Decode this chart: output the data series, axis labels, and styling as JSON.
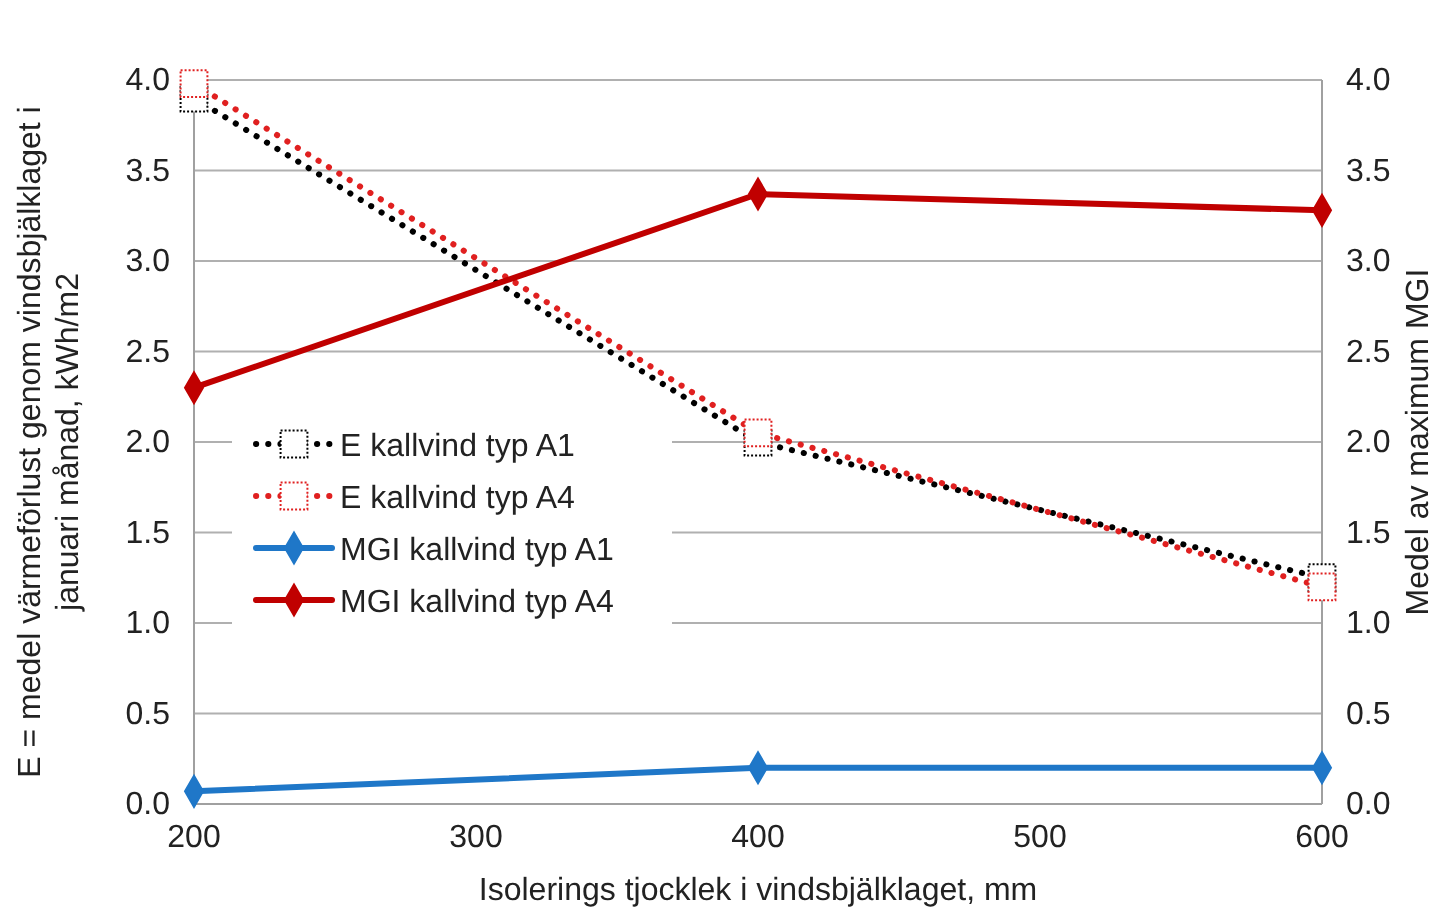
{
  "chart_data": {
    "type": "line",
    "xlabel": "Isolerings tjocklek i vindsbjälklaget, mm",
    "ylabel": "E = medel värmeförlust genom vindsbjälklaget i januari månad, kWh/m2",
    "y2label": "Medel av maximum MGI",
    "x": [
      200,
      400,
      600
    ],
    "xlim": [
      200,
      600
    ],
    "xticks": [
      200,
      300,
      400,
      500,
      600
    ],
    "ylim": [
      0,
      4
    ],
    "yticks": [
      {
        "value": 0,
        "label": "0.0"
      },
      {
        "value": 0.5,
        "label": "0.5"
      },
      {
        "value": 1,
        "label": "1.0"
      },
      {
        "value": 1.5,
        "label": "1.5"
      },
      {
        "value": 2,
        "label": "2.0"
      },
      {
        "value": 2.5,
        "label": "2.5"
      },
      {
        "value": 3,
        "label": "3.0"
      },
      {
        "value": 3.5,
        "label": "3.5"
      },
      {
        "value": 4,
        "label": "4.0"
      }
    ],
    "y2lim": [
      0,
      4
    ],
    "y2ticks": [
      {
        "value": 0,
        "label": "0.0"
      },
      {
        "value": 0.5,
        "label": "0.5"
      },
      {
        "value": 1,
        "label": "1.0"
      },
      {
        "value": 1.5,
        "label": "1.5"
      },
      {
        "value": 2,
        "label": "2.0"
      },
      {
        "value": 2.5,
        "label": "2.5"
      },
      {
        "value": 3,
        "label": "3.0"
      },
      {
        "value": 3.5,
        "label": "3.5"
      },
      {
        "value": 4,
        "label": "4.0"
      }
    ],
    "grid": "y",
    "legend": "left",
    "series": [
      {
        "name": "E kallvind typ A1",
        "color": "#000000",
        "values": [
          3.9,
          2.0,
          1.25
        ],
        "marker": "square",
        "line_style": "dotted"
      },
      {
        "name": "E kallvind typ A4",
        "color": "#e02020",
        "values": [
          3.98,
          2.05,
          1.2
        ],
        "marker": "square",
        "line_style": "dotted"
      },
      {
        "name": "MGI kallvind typ A1",
        "color": "#1f77c8",
        "values": [
          0.07,
          0.2,
          0.2
        ],
        "marker": "diamond",
        "line_style": "solid",
        "axis": "y2"
      },
      {
        "name": "MGI kallvind typ A4",
        "color": "#c00000",
        "values": [
          2.3,
          3.37,
          3.28
        ],
        "marker": "diamond",
        "line_style": "solid",
        "axis": "y2"
      }
    ]
  }
}
